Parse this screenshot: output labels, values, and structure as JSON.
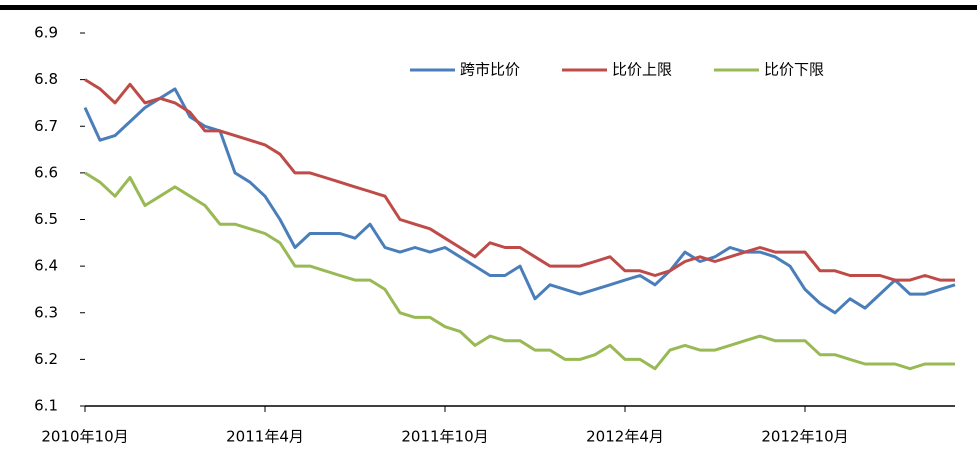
{
  "chart_data": {
    "type": "line",
    "x": [
      0,
      0.5,
      1,
      1.5,
      2,
      2.5,
      3,
      3.5,
      4,
      4.5,
      5,
      5.5,
      6,
      6.5,
      7,
      7.5,
      8,
      8.5,
      9,
      9.5,
      10,
      10.5,
      11,
      11.5,
      12,
      12.5,
      13,
      13.5,
      14,
      14.5,
      15,
      15.5,
      16,
      16.5,
      17,
      17.5,
      18,
      18.5,
      19,
      19.5,
      20,
      20.5,
      21,
      21.5,
      22,
      22.5,
      23,
      23.5,
      24,
      24.5,
      25,
      25.5,
      26,
      26.5,
      27,
      27.5,
      28,
      28.5,
      29
    ],
    "series": [
      {
        "name": "跨市比价",
        "color": "#4a7ebb",
        "values": [
          6.74,
          6.67,
          6.68,
          6.71,
          6.74,
          6.76,
          6.78,
          6.72,
          6.7,
          6.69,
          6.6,
          6.58,
          6.55,
          6.5,
          6.44,
          6.47,
          6.47,
          6.47,
          6.46,
          6.49,
          6.44,
          6.43,
          6.44,
          6.43,
          6.44,
          6.42,
          6.4,
          6.38,
          6.38,
          6.4,
          6.33,
          6.36,
          6.35,
          6.34,
          6.35,
          6.36,
          6.37,
          6.38,
          6.36,
          6.39,
          6.43,
          6.41,
          6.42,
          6.44,
          6.43,
          6.43,
          6.42,
          6.4,
          6.35,
          6.32,
          6.3,
          6.33,
          6.31,
          6.34,
          6.37,
          6.34,
          6.34,
          6.35,
          6.36
        ]
      },
      {
        "name": "比价上限",
        "color": "#be4b48",
        "values": [
          6.8,
          6.78,
          6.75,
          6.79,
          6.75,
          6.76,
          6.75,
          6.73,
          6.69,
          6.69,
          6.68,
          6.67,
          6.66,
          6.64,
          6.6,
          6.6,
          6.59,
          6.58,
          6.57,
          6.56,
          6.55,
          6.5,
          6.49,
          6.48,
          6.46,
          6.44,
          6.42,
          6.45,
          6.44,
          6.44,
          6.42,
          6.4,
          6.4,
          6.4,
          6.41,
          6.42,
          6.39,
          6.39,
          6.38,
          6.39,
          6.41,
          6.42,
          6.41,
          6.42,
          6.43,
          6.44,
          6.43,
          6.43,
          6.43,
          6.39,
          6.39,
          6.38,
          6.38,
          6.38,
          6.37,
          6.37,
          6.38,
          6.37,
          6.37
        ]
      },
      {
        "name": "比价下限",
        "color": "#98b954",
        "values": [
          6.6,
          6.58,
          6.55,
          6.59,
          6.53,
          6.55,
          6.57,
          6.55,
          6.53,
          6.49,
          6.49,
          6.48,
          6.47,
          6.45,
          6.4,
          6.4,
          6.39,
          6.38,
          6.37,
          6.37,
          6.35,
          6.3,
          6.29,
          6.29,
          6.27,
          6.26,
          6.23,
          6.25,
          6.24,
          6.24,
          6.22,
          6.22,
          6.2,
          6.2,
          6.21,
          6.23,
          6.2,
          6.2,
          6.18,
          6.22,
          6.23,
          6.22,
          6.22,
          6.23,
          6.24,
          6.25,
          6.24,
          6.24,
          6.24,
          6.21,
          6.21,
          6.2,
          6.19,
          6.19,
          6.19,
          6.18,
          6.19,
          6.19,
          6.19
        ]
      }
    ],
    "xlim": [
      0,
      29
    ],
    "xticks": [
      {
        "value": 0,
        "label": "2010年10月"
      },
      {
        "value": 6,
        "label": "2011年4月"
      },
      {
        "value": 12,
        "label": "2011年10月"
      },
      {
        "value": 18,
        "label": "2012年4月"
      },
      {
        "value": 24,
        "label": "2012年10月"
      }
    ],
    "ylim": [
      6.1,
      6.9
    ],
    "yticks": [
      6.1,
      6.2,
      6.3,
      6.4,
      6.5,
      6.6,
      6.7,
      6.8,
      6.9
    ],
    "grid": false,
    "legend": "top"
  }
}
